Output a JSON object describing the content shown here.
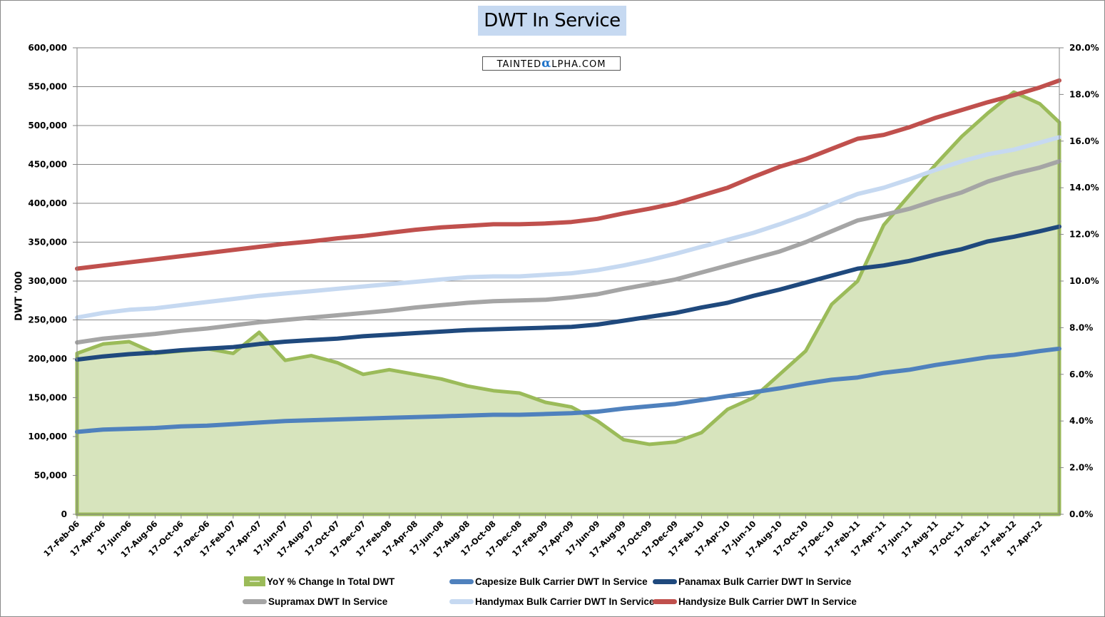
{
  "chart_data": {
    "type": "line",
    "title": "DWT In Service",
    "watermark": {
      "prefix": "TAINTED",
      "alpha": "α",
      "suffix": "LPHA.COM"
    },
    "ylabel": "DWT '000",
    "y2label": "",
    "xlabel": "",
    "ylim": [
      0,
      600000
    ],
    "y2lim": [
      0,
      0.2
    ],
    "grid": true,
    "legend_position": "bottom",
    "y_ticks": [
      "0",
      "50,000",
      "100,000",
      "150,000",
      "200,000",
      "250,000",
      "300,000",
      "350,000",
      "400,000",
      "450,000",
      "500,000",
      "550,000",
      "600,000"
    ],
    "y2_ticks": [
      "0.0%",
      "2.0%",
      "4.0%",
      "6.0%",
      "8.0%",
      "10.0%",
      "12.0%",
      "14.0%",
      "16.0%",
      "18.0%",
      "20.0%"
    ],
    "x_ticks": [
      "17-Feb-06",
      "17-Apr-06",
      "17-Jun-06",
      "17-Aug-06",
      "17-Oct-06",
      "17-Dec-06",
      "17-Feb-07",
      "17-Apr-07",
      "17-Jun-07",
      "17-Aug-07",
      "17-Oct-07",
      "17-Dec-07",
      "17-Feb-08",
      "17-Apr-08",
      "17-Jun-08",
      "17-Aug-08",
      "17-Oct-08",
      "17-Dec-08",
      "17-Feb-09",
      "17-Apr-09",
      "17-Jun-09",
      "17-Aug-09",
      "17-Oct-09",
      "17-Dec-09",
      "17-Feb-10",
      "17-Apr-10",
      "17-Jun-10",
      "17-Aug-10",
      "17-Oct-10",
      "17-Dec-10",
      "17-Feb-11",
      "17-Apr-11",
      "17-Jun-11",
      "17-Aug-11",
      "17-Oct-11",
      "17-Dec-11",
      "17-Feb-12",
      "17-Apr-12"
    ],
    "x_months_note": "x values are months since 17-Feb-06",
    "x": [
      0,
      2,
      4,
      6,
      8,
      10,
      12,
      14,
      16,
      18,
      20,
      22,
      24,
      26,
      28,
      30,
      32,
      34,
      36,
      38,
      40,
      42,
      44,
      46,
      48,
      50,
      52,
      54,
      56,
      58,
      60,
      62,
      64,
      66,
      68,
      70,
      72,
      74,
      75.5
    ],
    "series": [
      {
        "name": "YoY % Change In Total DWT",
        "type": "area",
        "axis": "right",
        "color": "#9bbb59",
        "fill": "#d7e4bd",
        "values": [
          0.069,
          0.073,
          0.074,
          0.069,
          0.07,
          0.071,
          0.069,
          0.078,
          0.066,
          0.068,
          0.065,
          0.06,
          0.062,
          0.06,
          0.058,
          0.055,
          0.053,
          0.052,
          0.048,
          0.046,
          0.04,
          0.032,
          0.03,
          0.031,
          0.035,
          0.045,
          0.05,
          0.06,
          0.07,
          0.09,
          0.1,
          0.124,
          0.137,
          0.15,
          0.162,
          0.172,
          0.181,
          0.176,
          0.168
        ]
      },
      {
        "name": "Capesize Bulk Carrier DWT In Service",
        "axis": "left",
        "color": "#4f81bd",
        "values": [
          106000,
          109000,
          110000,
          111000,
          113000,
          114000,
          116000,
          118000,
          120000,
          121000,
          122000,
          123000,
          124000,
          125000,
          126000,
          127000,
          128000,
          128000,
          129000,
          130000,
          132000,
          136000,
          139000,
          142000,
          147000,
          152000,
          157000,
          162000,
          168000,
          173000,
          176000,
          182000,
          186000,
          192000,
          197000,
          202000,
          205000,
          210000,
          213000
        ]
      },
      {
        "name": "Panamax Bulk Carrier DWT In Service",
        "axis": "left",
        "color": "#1f497d",
        "values": [
          199000,
          203000,
          206000,
          208000,
          211000,
          213000,
          215000,
          219000,
          222000,
          224000,
          226000,
          229000,
          231000,
          233000,
          235000,
          237000,
          238000,
          239000,
          240000,
          241000,
          244000,
          249000,
          254000,
          259000,
          266000,
          272000,
          281000,
          289000,
          298000,
          307000,
          316000,
          320000,
          326000,
          334000,
          341000,
          351000,
          357000,
          364000,
          370000
        ]
      },
      {
        "name": "Supramax DWT In Service",
        "axis": "left",
        "color": "#a5a5a5",
        "values": [
          221000,
          226000,
          229000,
          232000,
          236000,
          239000,
          243000,
          247000,
          250000,
          253000,
          256000,
          259000,
          262000,
          266000,
          269000,
          272000,
          274000,
          275000,
          276000,
          279000,
          283000,
          290000,
          296000,
          302000,
          311000,
          320000,
          329000,
          338000,
          350000,
          364000,
          378000,
          385000,
          393000,
          404000,
          414000,
          428000,
          438000,
          446000,
          454000
        ]
      },
      {
        "name": "Handymax Bulk Carrier DWT In Service",
        "axis": "left",
        "color": "#c6d9f1",
        "values": [
          253000,
          259000,
          263000,
          265000,
          269000,
          273000,
          277000,
          281000,
          284000,
          287000,
          290000,
          293000,
          296000,
          299000,
          302000,
          305000,
          306000,
          306000,
          308000,
          310000,
          314000,
          320000,
          327000,
          335000,
          344000,
          353000,
          362000,
          373000,
          385000,
          399000,
          412000,
          420000,
          431000,
          443000,
          454000,
          463000,
          469000,
          478000,
          485000
        ]
      },
      {
        "name": "Handysize Bulk Carrier DWT In Service",
        "axis": "left",
        "color": "#c0504d",
        "values": [
          316000,
          320000,
          324000,
          328000,
          332000,
          336000,
          340000,
          344000,
          348000,
          351000,
          355000,
          358000,
          362000,
          366000,
          369000,
          371000,
          373000,
          373000,
          374000,
          376000,
          380000,
          387000,
          393000,
          400000,
          410000,
          420000,
          434000,
          447000,
          457000,
          470000,
          483000,
          488000,
          498000,
          510000,
          520000,
          530000,
          539000,
          549000,
          558000
        ]
      }
    ],
    "legend": [
      "YoY % Change In Total DWT",
      "Capesize Bulk Carrier DWT In Service",
      "Panamax Bulk Carrier DWT In Service",
      "Supramax DWT In Service",
      "Handymax Bulk Carrier DWT In Service",
      "Handysize Bulk Carrier DWT In Service"
    ]
  }
}
